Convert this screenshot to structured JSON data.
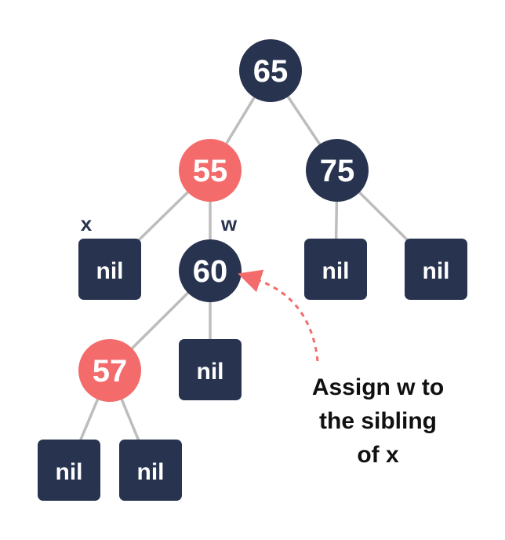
{
  "colors": {
    "black_node": "#283350",
    "red_node": "#f36b6b",
    "edge": "#bdbdbd",
    "arrow": "#f36b6b",
    "text": "#101010"
  },
  "nodes": {
    "n65": {
      "label": "65",
      "color": "black"
    },
    "n55": {
      "label": "55",
      "color": "red"
    },
    "n75": {
      "label": "75",
      "color": "black"
    },
    "n60": {
      "label": "60",
      "color": "black"
    },
    "n57": {
      "label": "57",
      "color": "red"
    }
  },
  "nil_label": "nil",
  "markers": {
    "x": "x",
    "w": "w"
  },
  "caption": {
    "line1": "Assign w to",
    "line2": "the sibling",
    "line3": "of x"
  }
}
